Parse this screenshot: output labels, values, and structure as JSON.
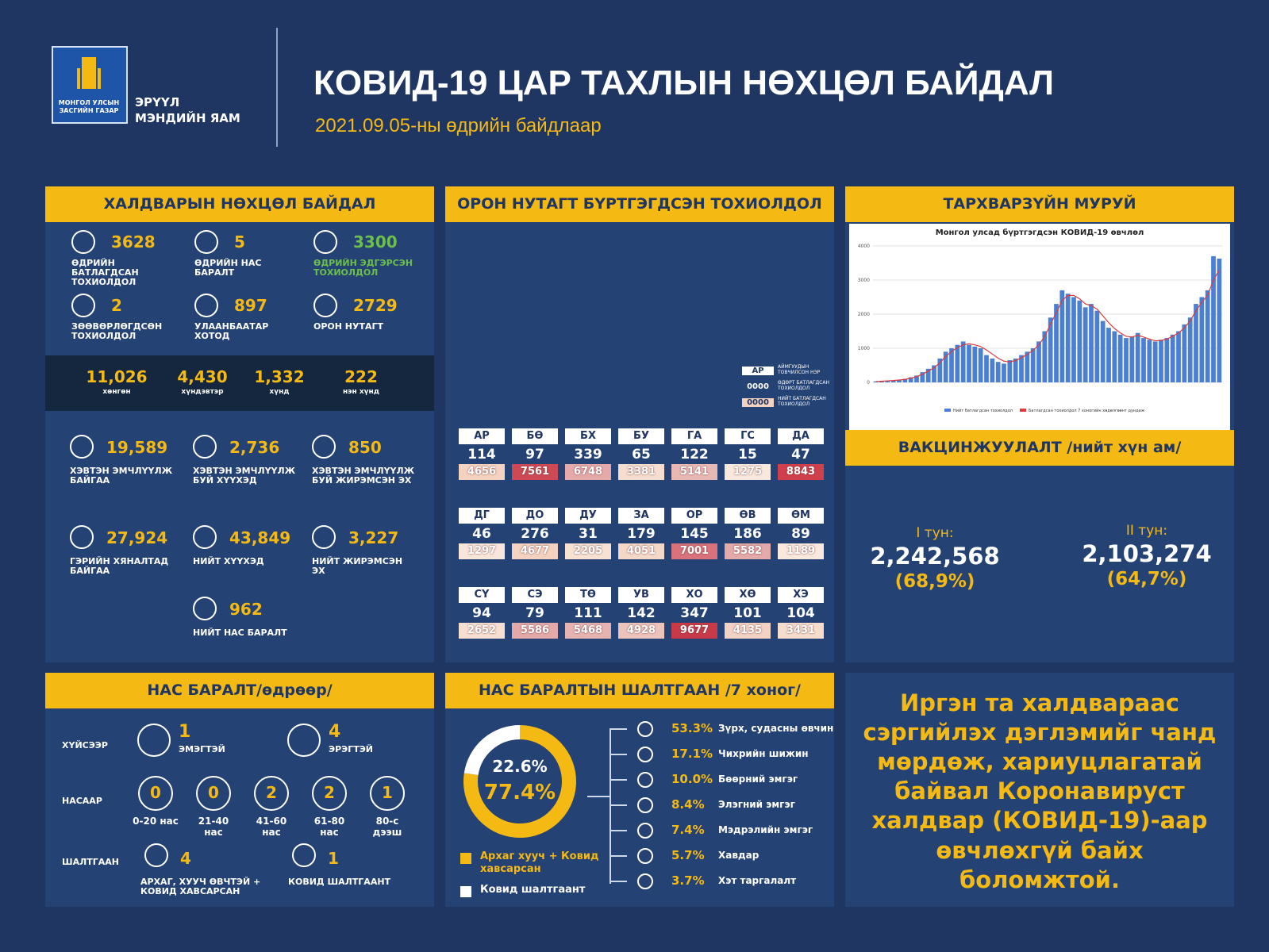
{
  "header": {
    "org": "МОНГОЛ УЛСЫН ЗАСГИЙН ГАЗАР",
    "ministry": "ЭРҮҮЛ МЭНДИЙН ЯАМ",
    "title": "КОВИД-19 ЦАР ТАХЛЫН НӨХЦӨЛ БАЙДАЛ",
    "subtitle": "2021.09.05-ны өдрийн байдлаар"
  },
  "infection": {
    "title": "ХАЛДВАРЫН НӨХЦӨЛ БАЙДАЛ",
    "stats": [
      {
        "value": "3628",
        "label": "ӨДРИЙН БАТЛАГДСАН ТОХИОЛДОЛ",
        "color": "#f5b914"
      },
      {
        "value": "5",
        "label": "ӨДРИЙН НАС БАРАЛТ",
        "color": "#f5b914"
      },
      {
        "value": "3300",
        "label": "ӨДРИЙН ЭДГЭРСЭН ТОХИОЛДОЛ",
        "color": "#6cc04a"
      },
      {
        "value": "2",
        "label": "ЗӨӨВӨРЛӨГДСӨН ТОХИОЛДОЛ",
        "color": "#f5b914"
      },
      {
        "value": "897",
        "label": "УЛААНБААТАР ХОТОД",
        "color": "#f5b914"
      },
      {
        "value": "2729",
        "label": "ОРОН НУТАГТ",
        "color": "#f5b914"
      }
    ],
    "severity": [
      {
        "value": "11,026",
        "label": "хөнгөн"
      },
      {
        "value": "4,430",
        "label": "хүндэвтэр"
      },
      {
        "value": "1,332",
        "label": "хүнд"
      },
      {
        "value": "222",
        "label": "нэн хүнд"
      }
    ],
    "hospital": [
      {
        "value": "19,589",
        "label": "ХЭВТЭН ЭМЧЛҮҮЛЖ БАЙГАА"
      },
      {
        "value": "2,736",
        "label": "ХЭВТЭН ЭМЧЛҮҮЛЖ БУЙ ХҮҮХЭД"
      },
      {
        "value": "850",
        "label": "ХЭВТЭН ЭМЧЛҮҮЛЖ БУЙ ЖИРЭМСЭН ЭХ"
      },
      {
        "value": "27,924",
        "label": "ГЭРИЙН ХЯНАЛТАД БАЙГАА"
      },
      {
        "value": "43,849",
        "label": "НИЙТ ХҮҮХЭД"
      },
      {
        "value": "3,227",
        "label": "НИЙТ ЖИРЭМСЭН ЭХ"
      },
      {
        "value": "962",
        "label": "НИЙТ НАС БАРАЛТ"
      }
    ]
  },
  "regions": {
    "title": "ОРОН НУТАГТ БҮРТГЭГДСЭН ТОХИОЛДОЛ",
    "legend": [
      {
        "code": "АР",
        "label": "АЙМГУУДЫН ТОВЧИЛСОН НЭР"
      },
      {
        "code": "0000",
        "label": "ӨДӨРТ БАТЛАГДСАН ТОХИОЛДОЛ"
      },
      {
        "code": "0000",
        "label": "НИЙТ БАТЛАГДСАН ТОХИОЛДОЛ"
      }
    ],
    "aimags": [
      {
        "code": "АР",
        "daily": "114",
        "total": "4656",
        "color": "#f3d2c0"
      },
      {
        "code": "БӨ",
        "daily": "97",
        "total": "7561",
        "color": "#cd4a55"
      },
      {
        "code": "БХ",
        "daily": "339",
        "total": "6748",
        "color": "#e5a9a9"
      },
      {
        "code": "БУ",
        "daily": "65",
        "total": "3381",
        "color": "#f5ddcf"
      },
      {
        "code": "ГА",
        "daily": "122",
        "total": "5141",
        "color": "#e8b9b4"
      },
      {
        "code": "ГС",
        "daily": "15",
        "total": "1275",
        "color": "#f8e8dd"
      },
      {
        "code": "ДА",
        "daily": "47",
        "total": "8843",
        "color": "#cf3f4c"
      },
      {
        "code": "ДГ",
        "daily": "46",
        "total": "1297",
        "color": "#f8e6da"
      },
      {
        "code": "ДО",
        "daily": "276",
        "total": "4677",
        "color": "#f3d2c0"
      },
      {
        "code": "ДУ",
        "daily": "31",
        "total": "2205",
        "color": "#f6e1d3"
      },
      {
        "code": "ЗА",
        "daily": "179",
        "total": "4051",
        "color": "#f4d8c8"
      },
      {
        "code": "ОР",
        "daily": "145",
        "total": "7001",
        "color": "#d9727a"
      },
      {
        "code": "ӨВ",
        "daily": "186",
        "total": "5582",
        "color": "#e3aaa9"
      },
      {
        "code": "ӨМ",
        "daily": "89",
        "total": "1189",
        "color": "#f8e8dd"
      },
      {
        "code": "СҮ",
        "daily": "94",
        "total": "2652",
        "color": "#f6dfd0"
      },
      {
        "code": "СЭ",
        "daily": "79",
        "total": "5586",
        "color": "#e3aaa9"
      },
      {
        "code": "ТӨ",
        "daily": "111",
        "total": "5468",
        "color": "#e7b3b0"
      },
      {
        "code": "УВ",
        "daily": "142",
        "total": "4928",
        "color": "#edc4bc"
      },
      {
        "code": "ХО",
        "daily": "347",
        "total": "9677",
        "color": "#c83a48"
      },
      {
        "code": "ХӨ",
        "daily": "101",
        "total": "4135",
        "color": "#f2d2c3"
      },
      {
        "code": "ХЭ",
        "daily": "104",
        "total": "3431",
        "color": "#f5dccd"
      }
    ]
  },
  "curve": {
    "title": "ТАРХВАРЗҮЙН МУРУЙ"
  },
  "vaccination": {
    "title": "ВАКЦИНЖУУЛАЛТ /нийт хүн ам/",
    "doses": [
      {
        "label": "I тун:",
        "count": "2,242,568",
        "share": "(68,9%)"
      },
      {
        "label": "II тун:",
        "count": "2,103,274",
        "share": "(64,7%)"
      }
    ]
  },
  "deaths": {
    "title": "НАС БАРАЛТ/өдрөөр/",
    "sex": {
      "label": "ХҮЙСЭЭР",
      "items": [
        {
          "value": "1",
          "label": "ЭМЭГТЭЙ"
        },
        {
          "value": "4",
          "label": "ЭРЭГТЭЙ"
        }
      ]
    },
    "age": {
      "label": "НАСААР",
      "items": [
        {
          "value": "0",
          "label": "0-20 нас"
        },
        {
          "value": "0",
          "label": "21-40 нас"
        },
        {
          "value": "2",
          "label": "41-60 нас"
        },
        {
          "value": "2",
          "label": "61-80 нас"
        },
        {
          "value": "1",
          "label": "80-с дээш"
        }
      ]
    },
    "cause": {
      "label": "ШАЛТГААН",
      "items": [
        {
          "value": "4",
          "label": "АРХАГ, ХУУЧ ӨВЧТЭЙ + КОВИД ХАВСАРСАН"
        },
        {
          "value": "1",
          "label": "КОВИД ШАЛТГААНТ"
        }
      ]
    }
  },
  "causes": {
    "title": "НАС БАРАЛТЫН ШАЛТГААН /7 хоног/",
    "items": [
      {
        "share": "53.3%",
        "label": "Зүрх, судасны өвчин"
      },
      {
        "share": "17.1%",
        "label": "Чихрийн шижин"
      },
      {
        "share": "10.0%",
        "label": "Бөөрний эмгэг"
      },
      {
        "share": "8.4%",
        "label": "Элэгний эмгэг"
      },
      {
        "share": "7.4%",
        "label": "Мэдрэлийн эмгэг"
      },
      {
        "share": "5.7%",
        "label": "Хавдар"
      },
      {
        "share": "3.7%",
        "label": "Хэт таргалалт"
      }
    ]
  },
  "message": "Иргэн та халдвараас сэргийлэх дэглэмийг чанд мөрдөж, хариуцлагатай байвал Коронавируст халдвар (КОВИД-19)-аар өвчлөхгүй байх боломжтой.",
  "chart_data": [
    {
      "type": "bar",
      "title": "Монгол улсад бүртгэгдсэн КОВИД-19 өвчлөл",
      "ylim": [
        0,
        4000
      ],
      "yticks": [
        0,
        1000,
        2000,
        3000,
        4000
      ],
      "grid": true,
      "series": [
        {
          "name": "Нийт батлагдсан тохиолдол",
          "color": "#4a7fd4",
          "values": [
            30,
            40,
            50,
            60,
            80,
            100,
            150,
            200,
            300,
            400,
            500,
            700,
            900,
            1000,
            1100,
            1200,
            1100,
            1050,
            1000,
            800,
            700,
            600,
            550,
            650,
            700,
            800,
            900,
            1000,
            1200,
            1500,
            1900,
            2300,
            2700,
            2600,
            2500,
            2400,
            2200,
            2300,
            2100,
            1800,
            1600,
            1500,
            1400,
            1300,
            1350,
            1450,
            1300,
            1250,
            1200,
            1250,
            1300,
            1400,
            1500,
            1700,
            1900,
            2300,
            2500,
            2700,
            3700,
            3628
          ]
        },
        {
          "name": "Батлагдсан тохиолдол 7 хоногийн хөдөлгөөнт дундаж",
          "color": "#e03a3a",
          "type": "line",
          "values": [
            25,
            35,
            45,
            55,
            70,
            90,
            120,
            170,
            240,
            330,
            430,
            580,
            760,
            900,
            1020,
            1100,
            1130,
            1100,
            1050,
            950,
            830,
            710,
            620,
            600,
            640,
            720,
            820,
            940,
            1100,
            1350,
            1700,
            2050,
            2400,
            2550,
            2550,
            2450,
            2300,
            2250,
            2150,
            1950,
            1750,
            1580,
            1450,
            1350,
            1330,
            1380,
            1330,
            1270,
            1220,
            1230,
            1270,
            1350,
            1450,
            1600,
            1800,
            2100,
            2350,
            2550,
            3000,
            3300
          ]
        }
      ]
    },
    {
      "type": "pie",
      "categories": [
        "Архаг хууч + Ковид хавсарсан",
        "Ковид шалтгаант"
      ],
      "values": [
        77.4,
        22.6
      ],
      "value_labels": [
        "77.4%",
        "22.6%"
      ],
      "colors": [
        "#f5b914",
        "#ffffff"
      ]
    }
  ]
}
